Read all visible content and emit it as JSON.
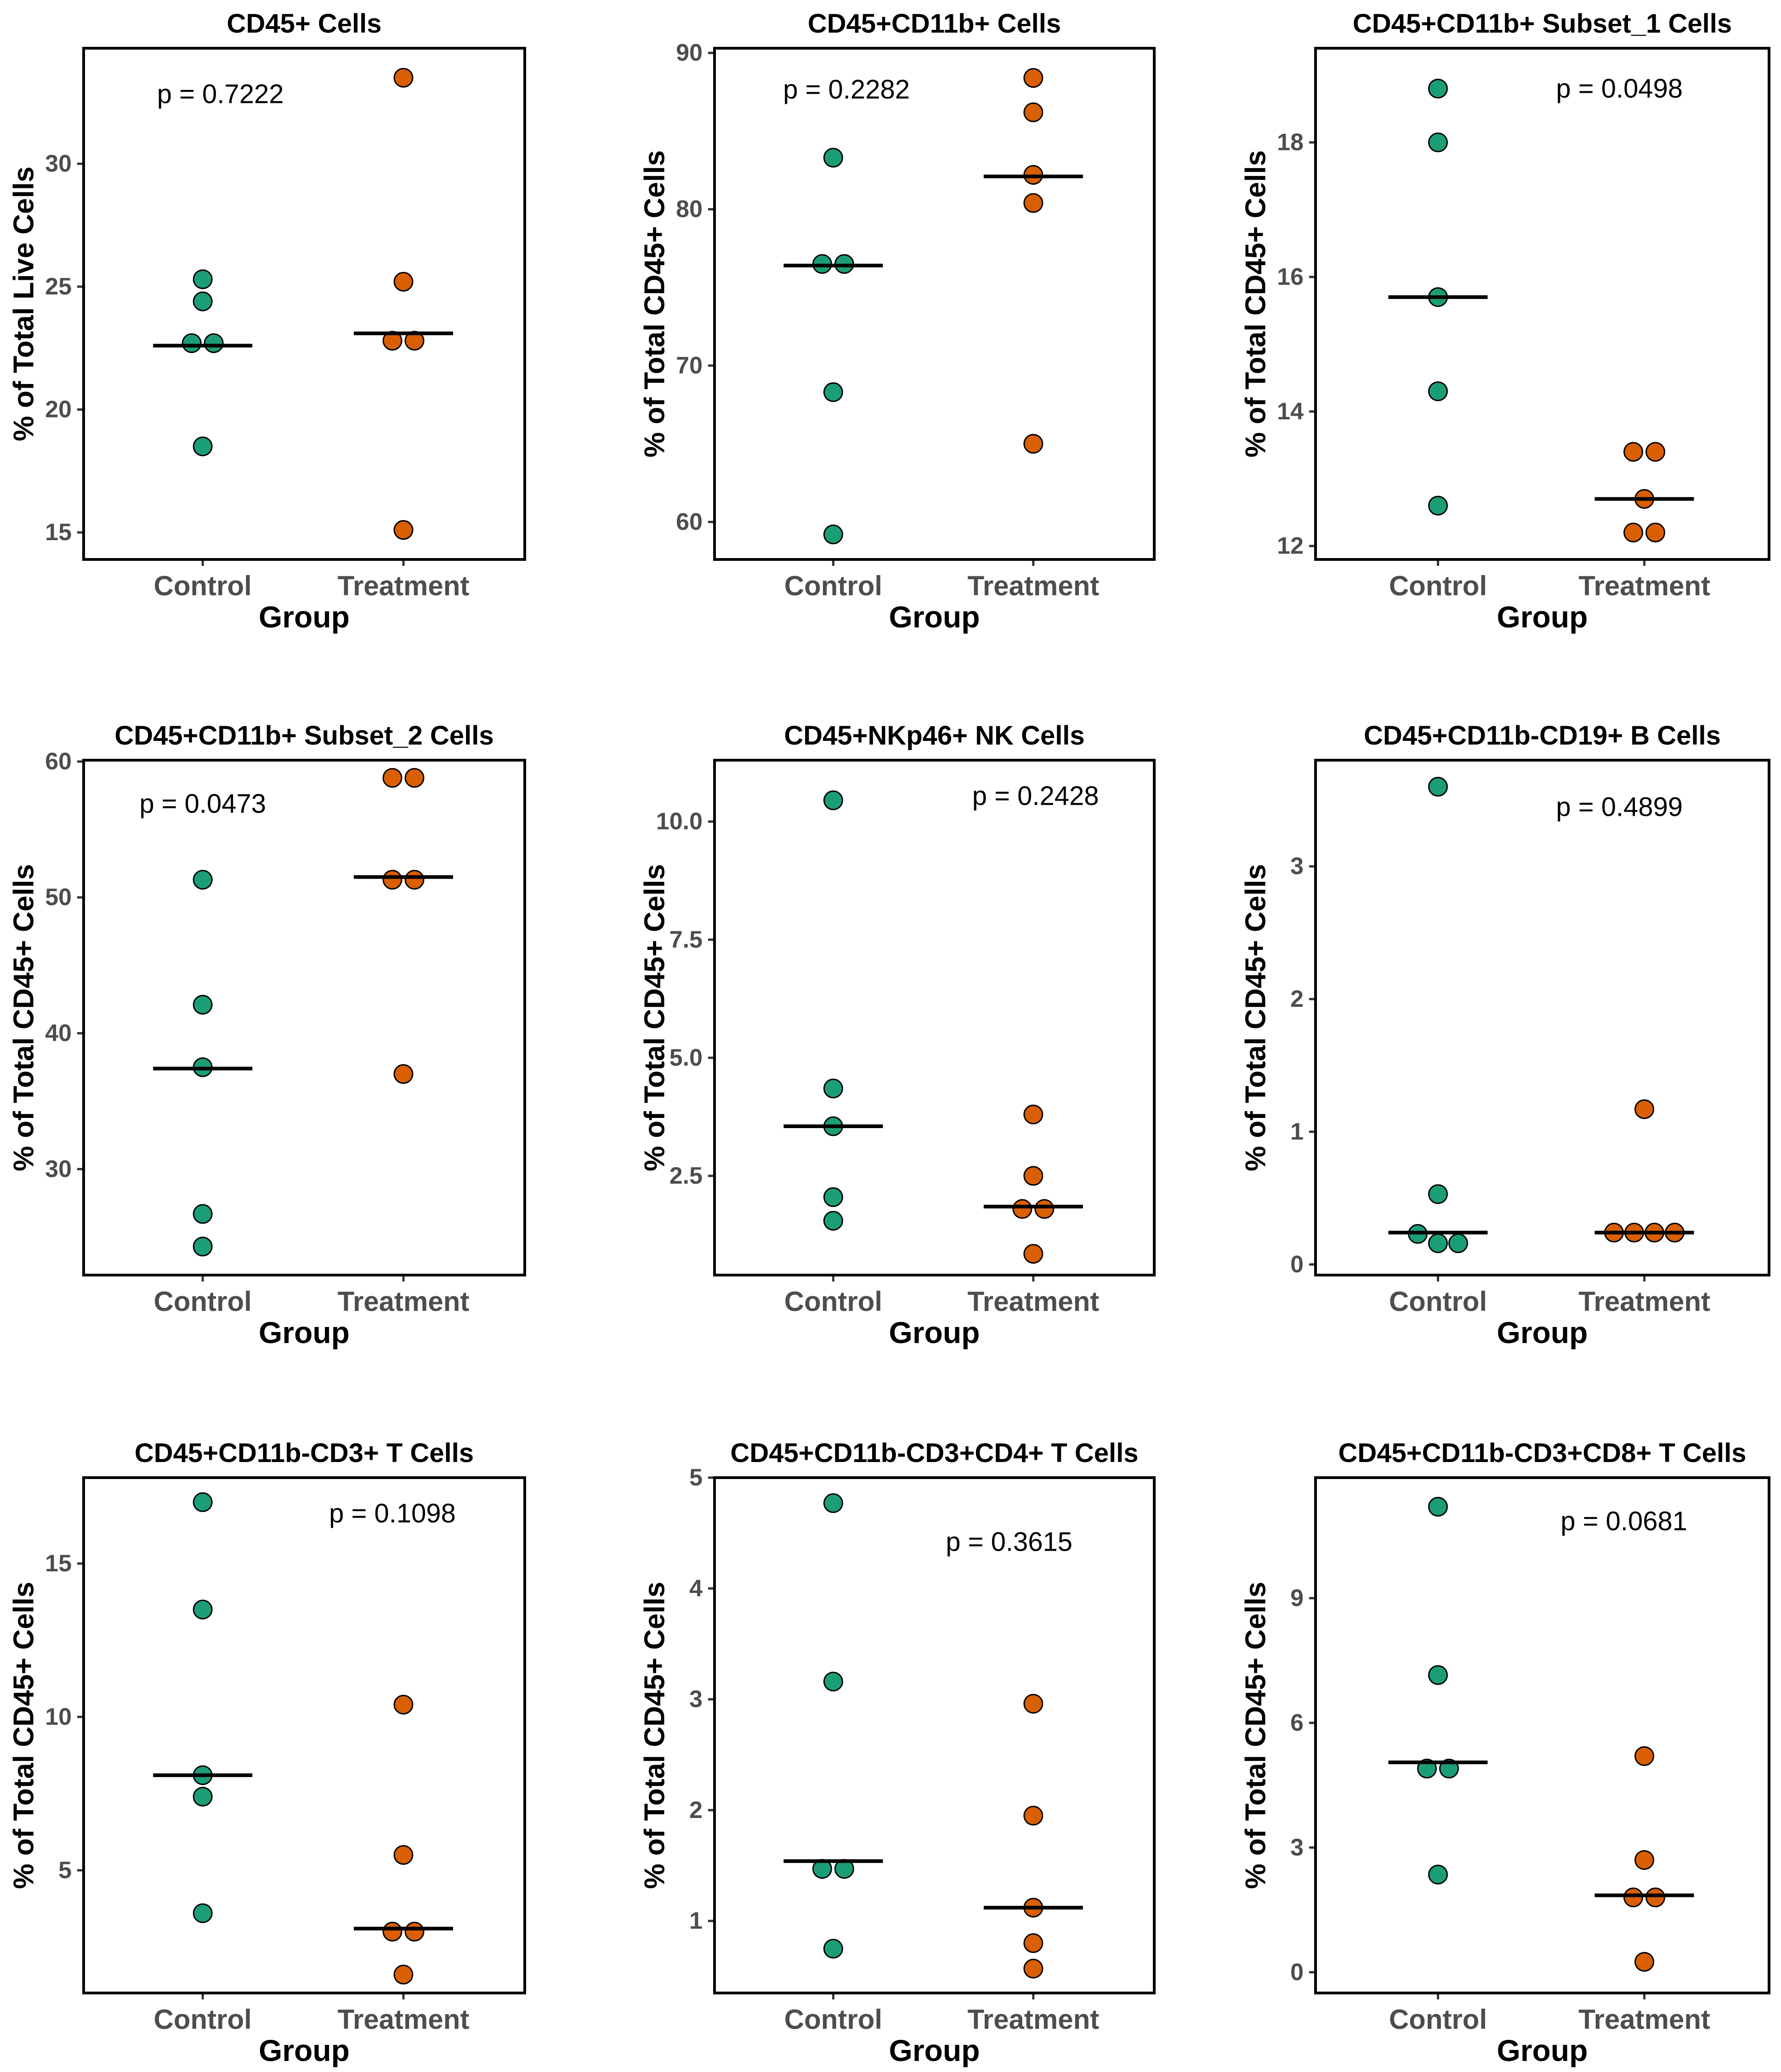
{
  "figure": {
    "xlabel": "Group",
    "groups": [
      "Control",
      "Treatment"
    ],
    "colors": {
      "Control": "#1b9e77",
      "Treatment": "#d95f02",
      "median": "#000000"
    }
  },
  "chart_data": [
    {
      "type": "scatter",
      "title": "CD45+ Cells",
      "ylabel": "% of Total Live Cells",
      "xlabel": "Group",
      "categories": [
        "Control",
        "Treatment"
      ],
      "ylim": [
        13.9,
        34.7
      ],
      "yticks": [
        15,
        20,
        25,
        30
      ],
      "p_value": "p = 0.7222",
      "series": [
        {
          "name": "Control",
          "values": [
            25.3,
            24.4,
            22.7,
            22.7,
            18.5
          ],
          "median": 22.6
        },
        {
          "name": "Treatment",
          "values": [
            33.5,
            25.2,
            22.8,
            22.8,
            15.1
          ],
          "median": 23.1
        }
      ]
    },
    {
      "type": "scatter",
      "title": "CD45+CD11b+ Cells",
      "ylabel": "% of Total CD45+ Cells",
      "xlabel": "Group",
      "categories": [
        "Control",
        "Treatment"
      ],
      "ylim": [
        57.6,
        90.3
      ],
      "yticks": [
        60,
        70,
        80,
        90
      ],
      "p_value": "p = 0.2282",
      "series": [
        {
          "name": "Control",
          "values": [
            83.3,
            76.5,
            76.5,
            68.3,
            59.2
          ],
          "median": 76.4
        },
        {
          "name": "Treatment",
          "values": [
            88.4,
            86.2,
            82.2,
            80.4,
            65.0
          ],
          "median": 82.1
        }
      ]
    },
    {
      "type": "scatter",
      "title": "CD45+CD11b+ Subset_1 Cells",
      "ylabel": "% of Total CD45+ Cells",
      "xlabel": "Group",
      "categories": [
        "Control",
        "Treatment"
      ],
      "ylim": [
        11.8,
        19.4
      ],
      "yticks": [
        12,
        14,
        16,
        18
      ],
      "p_value": "p = 0.0498",
      "series": [
        {
          "name": "Control",
          "values": [
            18.8,
            18.0,
            15.7,
            14.3,
            12.6
          ],
          "median": 15.7
        },
        {
          "name": "Treatment",
          "values": [
            13.4,
            13.4,
            12.7,
            12.2,
            12.2
          ],
          "median": 12.7
        }
      ]
    },
    {
      "type": "scatter",
      "title": "CD45+CD11b+ Subset_2 Cells",
      "ylabel": "% of Total CD45+ Cells",
      "xlabel": "Group",
      "categories": [
        "Control",
        "Treatment"
      ],
      "ylim": [
        22.2,
        60.1
      ],
      "yticks": [
        30,
        40,
        50,
        60
      ],
      "p_value": "p = 0.0473",
      "series": [
        {
          "name": "Control",
          "values": [
            51.3,
            42.1,
            37.5,
            26.7,
            24.3
          ],
          "median": 37.4
        },
        {
          "name": "Treatment",
          "values": [
            58.8,
            58.8,
            51.3,
            51.3,
            37.0
          ],
          "median": 51.5
        }
      ]
    },
    {
      "type": "scatter",
      "title": "CD45+NKp46+ NK Cells",
      "ylabel": "% of Total CD45+ Cells",
      "xlabel": "Group",
      "categories": [
        "Control",
        "Treatment"
      ],
      "ylim": [
        0.4,
        11.3
      ],
      "yticks": [
        2.5,
        5.0,
        7.5,
        10.0
      ],
      "ytick_labels": [
        "2.5",
        "5.0",
        "7.5",
        "10.0"
      ],
      "p_value": "p = 0.2428",
      "series": [
        {
          "name": "Control",
          "values": [
            10.45,
            4.35,
            3.55,
            2.05,
            1.55
          ],
          "median": 3.55
        },
        {
          "name": "Treatment",
          "values": [
            3.8,
            2.5,
            1.8,
            1.8,
            0.85
          ],
          "median": 1.85
        }
      ]
    },
    {
      "type": "scatter",
      "title": "CD45+CD11b-CD19+ B Cells",
      "ylabel": "% of Total CD45+ Cells",
      "xlabel": "Group",
      "categories": [
        "Control",
        "Treatment"
      ],
      "ylim": [
        -0.08,
        3.8
      ],
      "yticks": [
        0,
        1,
        2,
        3
      ],
      "p_value": "p = 0.4899",
      "series": [
        {
          "name": "Control",
          "values": [
            3.6,
            0.53,
            0.23,
            0.16,
            0.16
          ],
          "median": 0.24
        },
        {
          "name": "Treatment",
          "values": [
            1.17,
            0.24,
            0.24,
            0.24,
            0.24
          ],
          "median": 0.24
        }
      ]
    },
    {
      "type": "scatter",
      "title": "CD45+CD11b-CD3+ T Cells",
      "ylabel": "% of Total CD45+ Cells",
      "xlabel": "Group",
      "categories": [
        "Control",
        "Treatment"
      ],
      "ylim": [
        1.0,
        17.8
      ],
      "yticks": [
        5,
        10,
        15
      ],
      "p_value": "p = 0.1098",
      "series": [
        {
          "name": "Control",
          "values": [
            17.0,
            13.5,
            8.1,
            7.4,
            3.6
          ],
          "median": 8.1
        },
        {
          "name": "Treatment",
          "values": [
            10.4,
            5.5,
            3.0,
            3.0,
            1.6
          ],
          "median": 3.1
        }
      ]
    },
    {
      "type": "scatter",
      "title": "CD45+CD11b-CD3+CD4+ T Cells",
      "ylabel": "% of Total CD45+ Cells",
      "xlabel": "Group",
      "categories": [
        "Control",
        "Treatment"
      ],
      "ylim": [
        0.35,
        5.0
      ],
      "yticks": [
        1,
        2,
        3,
        4,
        5
      ],
      "p_value": "p = 0.3615",
      "series": [
        {
          "name": "Control",
          "values": [
            4.77,
            3.16,
            1.47,
            1.47,
            0.75
          ],
          "median": 1.54
        },
        {
          "name": "Treatment",
          "values": [
            2.96,
            1.95,
            1.12,
            0.8,
            0.57
          ],
          "median": 1.12
        }
      ]
    },
    {
      "type": "scatter",
      "title": "CD45+CD11b-CD3+CD8+ T Cells",
      "ylabel": "% of Total CD45+ Cells",
      "xlabel": "Group",
      "categories": [
        "Control",
        "Treatment"
      ],
      "ylim": [
        -0.5,
        11.9
      ],
      "yticks": [
        0,
        3,
        6,
        9
      ],
      "p_value": "p = 0.0681",
      "series": [
        {
          "name": "Control",
          "values": [
            11.2,
            7.15,
            4.9,
            4.9,
            2.35
          ],
          "median": 5.05
        },
        {
          "name": "Treatment",
          "values": [
            5.2,
            2.7,
            1.8,
            1.8,
            0.25
          ],
          "median": 1.85
        }
      ]
    }
  ]
}
